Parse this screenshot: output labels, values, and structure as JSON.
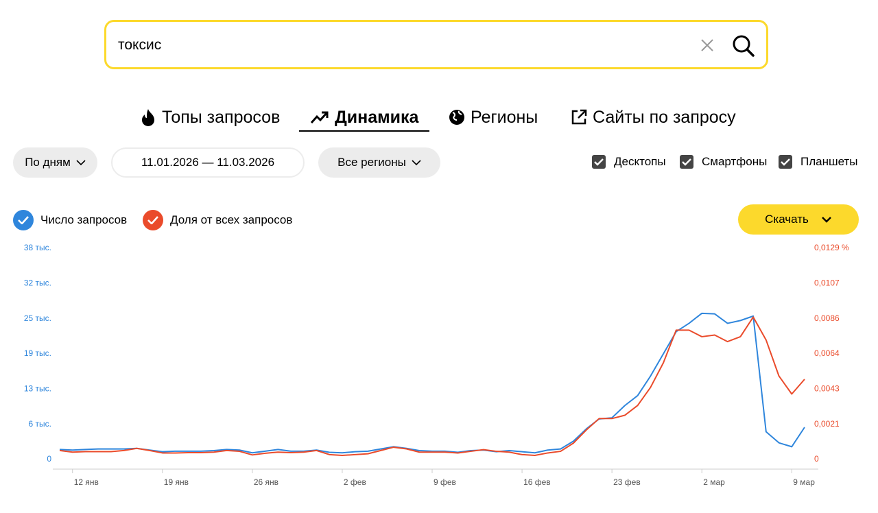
{
  "search": {
    "query": "токсис"
  },
  "tabs": [
    "Топы запросов",
    "Динамика",
    "Регионы",
    "Сайты по запросу"
  ],
  "filters": {
    "period": "По дням",
    "dates": "11.01.2026 — 11.03.2026",
    "region": "Все регионы",
    "devices": [
      "Десктопы",
      "Смартфоны",
      "Планшеты"
    ]
  },
  "download": "Скачать",
  "chart_data": {
    "type": "line",
    "categories": [
      null,
      "12 янв",
      null,
      null,
      null,
      null,
      null,
      null,
      "19 янв",
      null,
      null,
      null,
      null,
      null,
      null,
      "26 янв",
      null,
      null,
      null,
      null,
      null,
      null,
      "2 фев",
      null,
      null,
      null,
      null,
      null,
      null,
      "9 фев",
      null,
      null,
      null,
      null,
      null,
      null,
      "16 фев",
      null,
      null,
      null,
      null,
      null,
      null,
      "23 фев",
      null,
      null,
      null,
      null,
      null,
      null,
      "2 мар",
      null,
      null,
      null,
      null,
      null,
      null,
      "9 мар",
      null
    ],
    "series": [
      {
        "name": "Число запросов",
        "color": "#2f86dc",
        "values": [
          1800,
          1700,
          1800,
          1900,
          1900,
          1900,
          2000,
          1700,
          1400,
          1500,
          1500,
          1500,
          1600,
          1800,
          1700,
          1200,
          1500,
          1800,
          1500,
          1500,
          1700,
          1300,
          1200,
          1400,
          1500,
          1900,
          2300,
          2000,
          1600,
          1500,
          1500,
          1300,
          1600,
          1700,
          1400,
          1600,
          1400,
          1200,
          1700,
          1900,
          3300,
          5500,
          7300,
          7500,
          9700,
          11500,
          15000,
          19000,
          23000,
          24500,
          26300,
          26200,
          24500,
          25000,
          25800,
          5000,
          3000,
          2300,
          5800
        ]
      },
      {
        "name": "Доля от всех запросов",
        "color": "#ea4b2b",
        "axis": "y2",
        "values": [
          0.00055,
          0.00045,
          0.00048,
          0.00048,
          0.00048,
          0.00055,
          0.00068,
          0.00055,
          0.0004,
          0.0004,
          0.00042,
          0.00042,
          0.00045,
          0.00055,
          0.0005,
          0.00028,
          0.00038,
          0.00045,
          0.00042,
          0.00045,
          0.00055,
          0.0003,
          0.00025,
          0.0003,
          0.00035,
          0.00055,
          0.00075,
          0.00065,
          0.00045,
          0.00045,
          0.00045,
          0.0004,
          0.0005,
          0.0006,
          0.0005,
          0.00045,
          0.0003,
          0.00025,
          0.0004,
          0.0005,
          0.001,
          0.0018,
          0.0025,
          0.0025,
          0.0027,
          0.0033,
          0.0044,
          0.0059,
          0.0079,
          0.0079,
          0.0075,
          0.0076,
          0.0072,
          0.0075,
          0.0087,
          0.0073,
          0.0051,
          0.004,
          0.0049
        ]
      }
    ],
    "ylim": [
      0,
      38000
    ],
    "yticks": [
      0,
      {
        "value": 6333,
        "label": "6 тыс."
      },
      {
        "value": 12667,
        "label": "13 тыс."
      },
      {
        "value": 19000,
        "label": "19 тыс."
      },
      {
        "value": 25333,
        "label": "25 тыс."
      },
      {
        "value": 31667,
        "label": "32 тыс."
      },
      {
        "value": 38000,
        "label": "38 тыс."
      }
    ],
    "y2lim": [
      0,
      0.0129
    ],
    "y2ticks": [
      0,
      {
        "value": 0.00215,
        "label": "0,0021"
      },
      {
        "value": 0.0043,
        "label": "0,0043"
      },
      {
        "value": 0.00645,
        "label": "0,0064"
      },
      {
        "value": 0.0086,
        "label": "0,0086"
      },
      {
        "value": 0.01075,
        "label": "0,0107"
      },
      {
        "value": 0.0129,
        "label": "0,0129 %"
      }
    ]
  }
}
